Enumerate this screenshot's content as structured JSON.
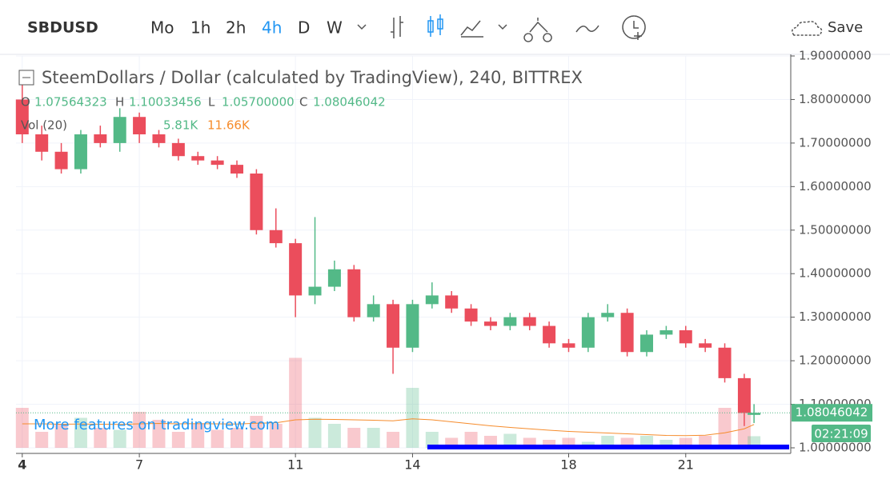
{
  "chart_data": {
    "type": "candlestick",
    "toolbar": {
      "symbol": "SBDUSD",
      "intervals": [
        "Mo",
        "1h",
        "2h",
        "4h",
        "D",
        "W"
      ],
      "active_interval": 3,
      "save": "Save"
    },
    "title": "SteemDollars / Dollar (calculated by TradingView), 240, BITTREX",
    "ohlc_legend": [
      {
        "key": "O",
        "label": "1.07564323"
      },
      {
        "key": "H",
        "label": "1.10033456"
      },
      {
        "key": "L",
        "label": "1.05700000"
      },
      {
        "key": "C",
        "label": "1.08046042"
      }
    ],
    "volume_legend": {
      "name": "Vol (20)",
      "value_label": "5.81K",
      "ma_label": "11.66K"
    },
    "watermark": "More features on tradingview.com",
    "countdown": "02:21:09",
    "up_color": "#53b987",
    "down_color": "#eb4d5c",
    "x": [
      4,
      4.5,
      5,
      5.5,
      6,
      6.5,
      7,
      7.5,
      8,
      8.5,
      9,
      9.5,
      10,
      10.5,
      11,
      11.5,
      12,
      12.5,
      13,
      13.5,
      14,
      14.5,
      15,
      15.5,
      16,
      16.5,
      17,
      17.5,
      18,
      18.5,
      19,
      19.5,
      20,
      20.5,
      21,
      21.5,
      22,
      22.5,
      22.75
    ],
    "open": [
      1.8,
      1.72,
      1.68,
      1.64,
      1.72,
      1.7,
      1.76,
      1.72,
      1.7,
      1.67,
      1.66,
      1.65,
      1.63,
      1.5,
      1.47,
      1.35,
      1.37,
      1.41,
      1.3,
      1.33,
      1.23,
      1.33,
      1.35,
      1.32,
      1.29,
      1.28,
      1.3,
      1.28,
      1.24,
      1.23,
      1.3,
      1.31,
      1.22,
      1.26,
      1.27,
      1.24,
      1.23,
      1.16,
      1.07564323
    ],
    "high": [
      1.85,
      1.74,
      1.7,
      1.73,
      1.74,
      1.78,
      1.77,
      1.73,
      1.71,
      1.68,
      1.67,
      1.66,
      1.64,
      1.55,
      1.48,
      1.53,
      1.43,
      1.42,
      1.35,
      1.34,
      1.34,
      1.38,
      1.36,
      1.33,
      1.3,
      1.31,
      1.31,
      1.29,
      1.25,
      1.31,
      1.33,
      1.32,
      1.27,
      1.28,
      1.28,
      1.25,
      1.24,
      1.17,
      1.10033456
    ],
    "low": [
      1.7,
      1.66,
      1.63,
      1.63,
      1.69,
      1.68,
      1.7,
      1.69,
      1.66,
      1.65,
      1.64,
      1.62,
      1.49,
      1.46,
      1.3,
      1.33,
      1.36,
      1.29,
      1.29,
      1.17,
      1.22,
      1.32,
      1.31,
      1.28,
      1.27,
      1.27,
      1.27,
      1.23,
      1.22,
      1.22,
      1.29,
      1.21,
      1.21,
      1.25,
      1.23,
      1.22,
      1.15,
      1.05,
      1.057
    ],
    "close": [
      1.72,
      1.68,
      1.64,
      1.72,
      1.7,
      1.76,
      1.72,
      1.7,
      1.67,
      1.66,
      1.65,
      1.63,
      1.5,
      1.47,
      1.35,
      1.37,
      1.41,
      1.3,
      1.33,
      1.23,
      1.33,
      1.35,
      1.32,
      1.29,
      1.28,
      1.3,
      1.28,
      1.24,
      1.23,
      1.3,
      1.31,
      1.22,
      1.26,
      1.27,
      1.24,
      1.23,
      1.16,
      1.08,
      1.08046042
    ],
    "volume": [
      20000,
      8000,
      12000,
      15000,
      10000,
      9000,
      18000,
      14000,
      8000,
      12000,
      9000,
      10000,
      16000,
      12000,
      45000,
      15000,
      12000,
      10000,
      10000,
      8000,
      30000,
      8000,
      5000,
      8000,
      6000,
      7000,
      5000,
      4000,
      5000,
      3000,
      6000,
      5000,
      6000,
      4000,
      5000,
      6000,
      20000,
      18000,
      5810
    ],
    "volume_ma": [
      12000,
      12000,
      11800,
      11900,
      11800,
      11700,
      12000,
      12200,
      12000,
      12100,
      12000,
      11900,
      12300,
      12500,
      14000,
      14300,
      14200,
      14000,
      13800,
      13500,
      14500,
      14000,
      13000,
      12000,
      11000,
      10200,
      9500,
      8800,
      8200,
      7800,
      7400,
      7000,
      6600,
      6200,
      6100,
      6300,
      7500,
      9500,
      11660
    ],
    "xlim": [
      3.84,
      23.65
    ],
    "xticks": [
      4,
      7,
      11,
      14,
      18,
      21
    ],
    "ylim": [
      1.0,
      1.9
    ],
    "yticks": [
      {
        "value": 1.0,
        "label": "1.00000000"
      },
      {
        "value": 1.1,
        "label": "1.10000000"
      },
      {
        "value": 1.2,
        "label": "1.20000000"
      },
      {
        "value": 1.3,
        "label": "1.30000000"
      },
      {
        "value": 1.4,
        "label": "1.40000000"
      },
      {
        "value": 1.5,
        "label": "1.50000000"
      },
      {
        "value": 1.6,
        "label": "1.60000000"
      },
      {
        "value": 1.7,
        "label": "1.70000000"
      },
      {
        "value": 1.8,
        "label": "1.80000000"
      },
      {
        "value": 1.9,
        "label": "1.90000000"
      }
    ],
    "vlim": [
      0,
      50000
    ],
    "grid": true
  }
}
